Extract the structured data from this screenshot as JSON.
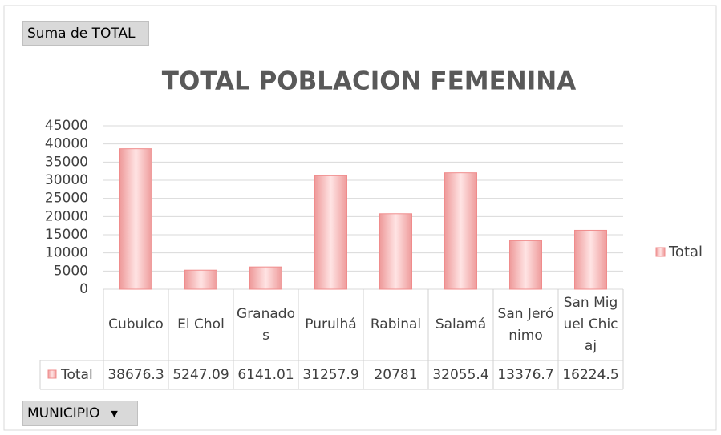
{
  "value_field_button": "Suma de TOTAL",
  "axis_field_button": "MUNICIPIO",
  "chart_data": {
    "type": "bar",
    "title": "TOTAL POBLACION FEMENINA",
    "categories": [
      "Cubulco",
      "El Chol",
      "Granados",
      "Purulhá",
      "Rabinal",
      "Salamá",
      "San Jerónimo",
      "San Miguel Chicaj"
    ],
    "series": [
      {
        "name": "Total",
        "color": "#f08c8c",
        "values": [
          38676.3,
          5247.09,
          6141.01,
          31257.9,
          20781,
          32055.4,
          13376.7,
          16224.5
        ]
      }
    ],
    "ylim": [
      0,
      45000
    ],
    "yticks": [
      0,
      5000,
      10000,
      15000,
      20000,
      25000,
      30000,
      35000,
      40000,
      45000
    ],
    "grid": true,
    "legend": "right",
    "data_table": true
  }
}
